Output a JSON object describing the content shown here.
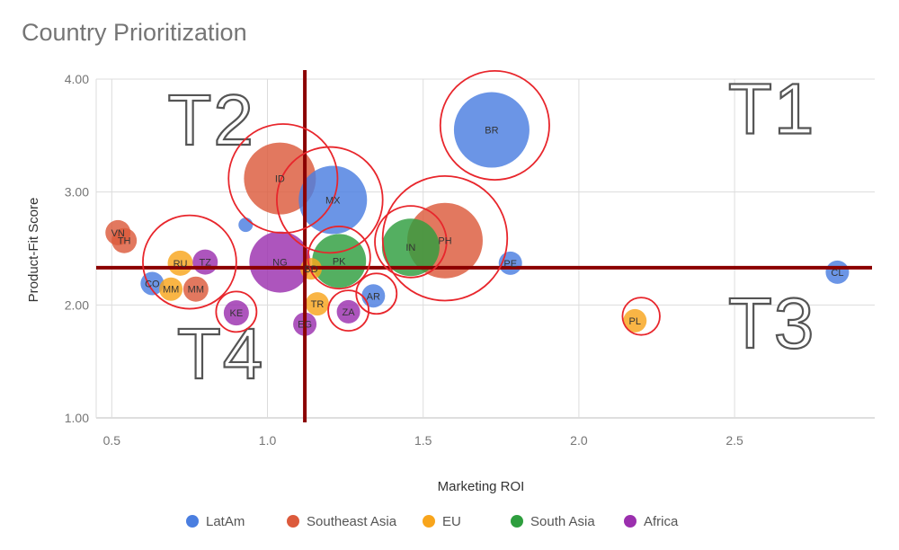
{
  "chart_data": {
    "type": "bubble",
    "title": "Country Prioritization",
    "xlabel": "Marketing ROI",
    "ylabel": "Product-Fit Score",
    "xlim": [
      0.45,
      2.95
    ],
    "ylim": [
      1.0,
      4.0
    ],
    "xticks": [
      0.5,
      1.0,
      1.5,
      2.0,
      2.5
    ],
    "xtick_labels": [
      "0.5",
      "1.0",
      "1.5",
      "2.0",
      "2.5"
    ],
    "yticks": [
      1.0,
      2.0,
      3.0,
      4.0
    ],
    "ytick_labels": [
      "1.00",
      "2.00",
      "3.00",
      "4.00"
    ],
    "grid": true,
    "legend_position": "bottom",
    "colors": {
      "LatAm": "#4a7ee0",
      "Southeast Asia": "#dc5a3c",
      "EU": "#f8a51c",
      "South Asia": "#2e9e3e",
      "Africa": "#9b2fae",
      "divider": "#8b0000",
      "highlight": "#e8262c"
    },
    "series": [
      {
        "name": "LatAm",
        "points": [
          {
            "label": "BR",
            "x": 1.72,
            "y": 3.55,
            "size": 42
          },
          {
            "label": "MX",
            "x": 1.21,
            "y": 2.93,
            "size": 38
          },
          {
            "label": "PE",
            "x": 1.78,
            "y": 2.37,
            "size": 13
          },
          {
            "label": "CL",
            "x": 2.83,
            "y": 2.29,
            "size": 13
          },
          {
            "label": "CO",
            "x": 0.63,
            "y": 2.19,
            "size": 13
          },
          {
            "label": "AR",
            "x": 1.34,
            "y": 2.08,
            "size": 13
          },
          {
            "label": "",
            "x": 0.93,
            "y": 2.71,
            "size": 8
          }
        ]
      },
      {
        "name": "Southeast Asia",
        "points": [
          {
            "label": "ID",
            "x": 1.04,
            "y": 3.12,
            "size": 40
          },
          {
            "label": "PH",
            "x": 1.57,
            "y": 2.57,
            "size": 42
          },
          {
            "label": "VN",
            "x": 0.52,
            "y": 2.64,
            "size": 14
          },
          {
            "label": "TH",
            "x": 0.54,
            "y": 2.57,
            "size": 14
          },
          {
            "label": "MM",
            "x": 0.77,
            "y": 2.14,
            "size": 14
          }
        ]
      },
      {
        "name": "EU",
        "points": [
          {
            "label": "RU",
            "x": 0.72,
            "y": 2.37,
            "size": 14
          },
          {
            "label": "MM",
            "x": 0.69,
            "y": 2.14,
            "size": 13
          },
          {
            "label": "TR",
            "x": 1.16,
            "y": 2.01,
            "size": 13
          },
          {
            "label": "PL",
            "x": 2.18,
            "y": 1.86,
            "size": 13
          },
          {
            "label": "BD",
            "x": 1.14,
            "y": 2.32,
            "size": 12
          }
        ]
      },
      {
        "name": "South Asia",
        "points": [
          {
            "label": "IN",
            "x": 1.46,
            "y": 2.51,
            "size": 32
          },
          {
            "label": "PK",
            "x": 1.23,
            "y": 2.39,
            "size": 30
          }
        ]
      },
      {
        "name": "Africa",
        "points": [
          {
            "label": "NG",
            "x": 1.04,
            "y": 2.38,
            "size": 34
          },
          {
            "label": "TZ",
            "x": 0.8,
            "y": 2.38,
            "size": 14
          },
          {
            "label": "KE",
            "x": 0.9,
            "y": 1.93,
            "size": 14
          },
          {
            "label": "EG",
            "x": 1.12,
            "y": 1.83,
            "size": 13
          },
          {
            "label": "ZA",
            "x": 1.26,
            "y": 1.94,
            "size": 13
          }
        ]
      }
    ],
    "annotations": {
      "tiers": [
        {
          "label": "T1",
          "x": 2.62,
          "y": 3.52
        },
        {
          "label": "T2",
          "x": 0.82,
          "y": 3.42
        },
        {
          "label": "T3",
          "x": 2.62,
          "y": 1.62
        },
        {
          "label": "T4",
          "x": 0.85,
          "y": 1.35
        }
      ],
      "divider_x": 1.12,
      "divider_y": 2.33,
      "highlight_circles": [
        {
          "x": 1.73,
          "y": 3.59,
          "r": 0.175
        },
        {
          "x": 1.05,
          "y": 3.12,
          "r": 0.175
        },
        {
          "x": 1.2,
          "y": 2.93,
          "r": 0.17
        },
        {
          "x": 1.57,
          "y": 2.59,
          "r": 0.2
        },
        {
          "x": 1.46,
          "y": 2.56,
          "r": 0.115
        },
        {
          "x": 1.23,
          "y": 2.42,
          "r": 0.1
        },
        {
          "x": 0.75,
          "y": 2.38,
          "r": 0.15
        },
        {
          "x": 0.9,
          "y": 1.94,
          "r": 0.065
        },
        {
          "x": 1.35,
          "y": 2.1,
          "r": 0.065
        },
        {
          "x": 1.26,
          "y": 1.95,
          "r": 0.065
        },
        {
          "x": 2.2,
          "y": 1.9,
          "r": 0.06
        }
      ]
    }
  }
}
